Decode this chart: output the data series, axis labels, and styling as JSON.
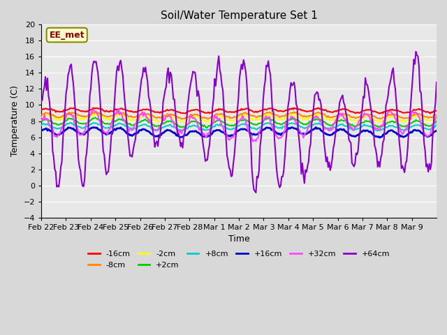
{
  "title": "Soil/Water Temperature Set 1",
  "xlabel": "Time",
  "ylabel": "Temperature (C)",
  "ylim": [
    -4,
    20
  ],
  "yticks": [
    -4,
    -2,
    0,
    2,
    4,
    6,
    8,
    10,
    12,
    14,
    16,
    18,
    20
  ],
  "xtick_labels": [
    "Feb 22",
    "Feb 23",
    "Feb 24",
    "Feb 25",
    "Feb 26",
    "Feb 27",
    "Feb 28",
    "Mar 1",
    "Mar 2",
    "Mar 3",
    "Mar 4",
    "Mar 5",
    "Mar 6",
    "Mar 7",
    "Mar 8",
    "Mar 9"
  ],
  "annotation_text": "EE_met",
  "annotation_color": "#8b0000",
  "annotation_bg": "#ffffcc",
  "annotation_border": "#8b8b00",
  "series": {
    "-16cm": {
      "color": "#ff0000",
      "lw": 1.5
    },
    "-8cm": {
      "color": "#ff8800",
      "lw": 1.5
    },
    "-2cm": {
      "color": "#ffff00",
      "lw": 1.5
    },
    "+2cm": {
      "color": "#00cc00",
      "lw": 1.5
    },
    "+8cm": {
      "color": "#00cccc",
      "lw": 1.5
    },
    "+16cm": {
      "color": "#0000cc",
      "lw": 2.0
    },
    "+32cm": {
      "color": "#ff44ff",
      "lw": 1.5
    },
    "+64cm": {
      "color": "#8800cc",
      "lw": 1.5
    }
  },
  "legend_ncol": 6,
  "bg_color": "#d8d8d8",
  "plot_bg_color": "#e8e8e8"
}
